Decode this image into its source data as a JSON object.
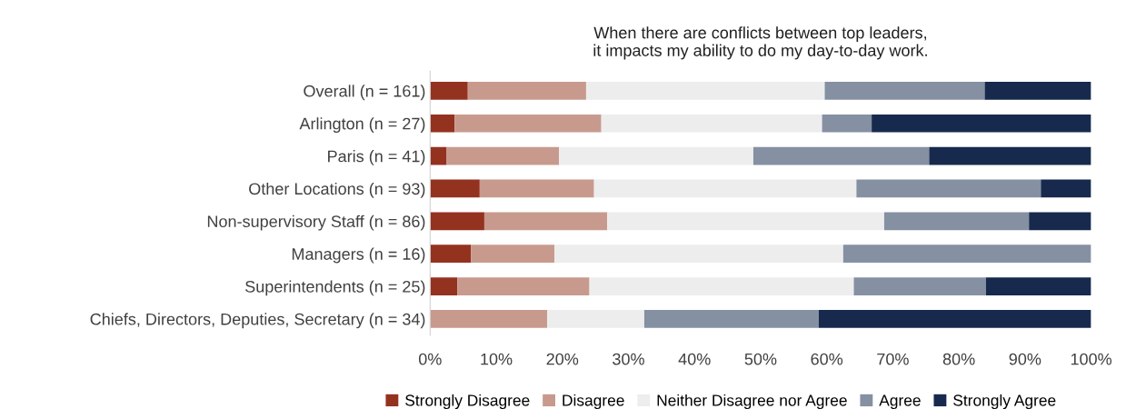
{
  "chart_data": {
    "type": "bar",
    "orientation": "horizontal",
    "stacked": true,
    "title": "When there are conflicts between top leaders,\nit impacts my ability to do my day-to-day work.",
    "categories": [
      "Overall (n = 161)",
      "Arlington (n = 27)",
      "Paris (n = 41)",
      "Other Locations (n = 93)",
      "Non-supervisory Staff (n = 86)",
      "Managers (n = 16)",
      "Superintendents (n = 25)",
      "Chiefs, Directors, Deputies, Secretary (n = 34)"
    ],
    "series": [
      {
        "name": "Strongly Disagree",
        "color": "#943220",
        "values": [
          5.7,
          3.7,
          2.5,
          7.5,
          8.2,
          6.2,
          4.1,
          0
        ]
      },
      {
        "name": "Disagree",
        "color": "#c89a8e",
        "values": [
          17.9,
          22.2,
          17.0,
          17.3,
          18.6,
          12.6,
          20.0,
          17.7
        ]
      },
      {
        "name": "Neither Disagree nor Agree",
        "color": "#ededed",
        "values": [
          36.1,
          33.4,
          29.4,
          39.7,
          41.9,
          43.7,
          40.0,
          14.7
        ]
      },
      {
        "name": "Agree",
        "color": "#8590a3",
        "values": [
          24.2,
          7.5,
          26.6,
          27.9,
          21.9,
          37.5,
          20.0,
          26.4
        ]
      },
      {
        "name": "Strongly Agree",
        "color": "#172a4d",
        "values": [
          16.1,
          33.2,
          24.5,
          7.6,
          9.4,
          0,
          15.9,
          41.2
        ]
      }
    ],
    "xlim": [
      0,
      100
    ],
    "xticks": [
      {
        "value": 0,
        "label": "0%"
      },
      {
        "value": 10,
        "label": "10%"
      },
      {
        "value": 20,
        "label": "20%"
      },
      {
        "value": 30,
        "label": "30%"
      },
      {
        "value": 40,
        "label": "40%"
      },
      {
        "value": 50,
        "label": "50%"
      },
      {
        "value": 60,
        "label": "60%"
      },
      {
        "value": 70,
        "label": "70%"
      },
      {
        "value": 80,
        "label": "80%"
      },
      {
        "value": 90,
        "label": "90%"
      },
      {
        "value": 100,
        "label": "100%"
      }
    ],
    "grid": false,
    "legend": "bottom"
  }
}
